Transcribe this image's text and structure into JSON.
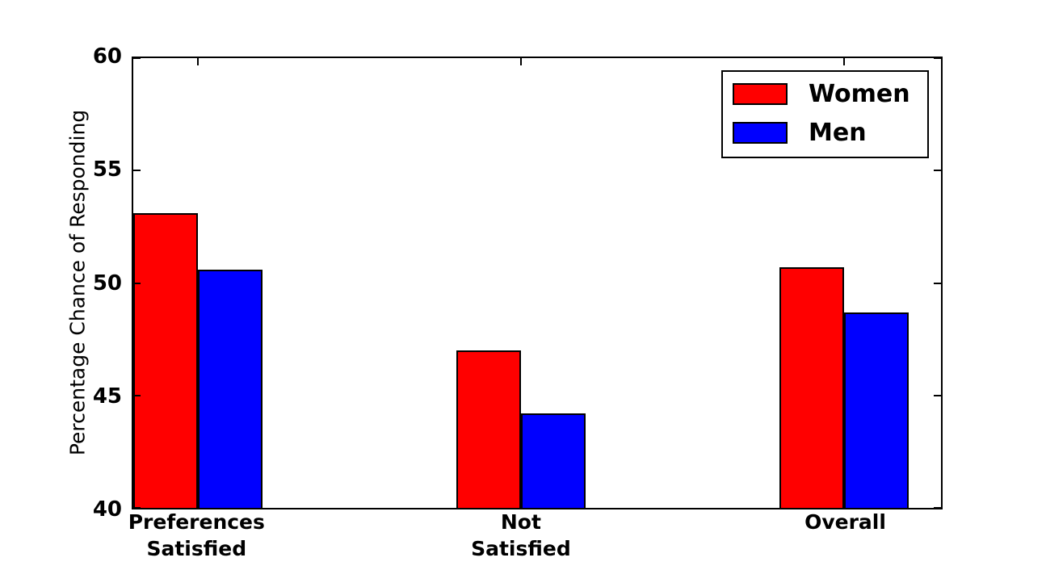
{
  "figure": {
    "background_color": "#ffffff",
    "axes_color": "#000000"
  },
  "chart_data": {
    "type": "bar",
    "title": "",
    "xlabel": "",
    "ylabel": "Percentage Chance of Responding",
    "ylim": [
      40,
      60
    ],
    "yticks": [
      40,
      45,
      50,
      55,
      60
    ],
    "xlim": [
      0,
      2.5
    ],
    "grid": false,
    "bar_width": 0.2,
    "group_positions": [
      0,
      1,
      2
    ],
    "tick_positions": [
      0.2,
      1.2,
      2.2
    ],
    "categories": [
      "Preferences\nSatisfied",
      "Not\nSatisfied",
      "Overall"
    ],
    "series": [
      {
        "name": "Women",
        "color": "#ff0000",
        "values": [
          53.1,
          47.0,
          50.7
        ]
      },
      {
        "name": "Men",
        "color": "#0000ff",
        "values": [
          50.6,
          44.2,
          48.7
        ]
      }
    ],
    "legend": {
      "position": "upper right",
      "items": [
        {
          "label": "Women",
          "color": "#ff0000"
        },
        {
          "label": "Men",
          "color": "#0000ff"
        }
      ]
    }
  }
}
